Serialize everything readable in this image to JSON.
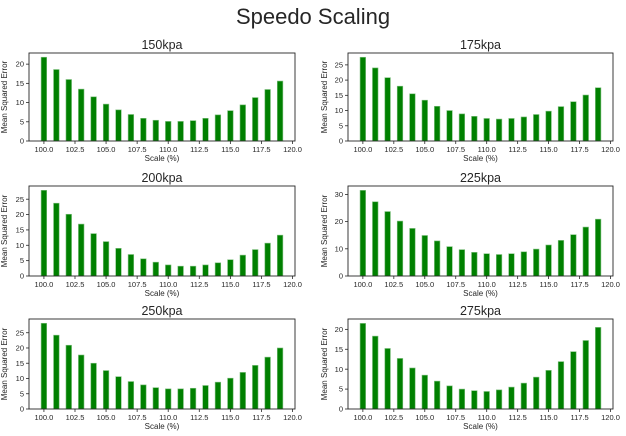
{
  "suptitle": "Speedo Scaling",
  "chart_data": [
    {
      "type": "bar",
      "title": "150kpa",
      "xlabel": "Scale (%)",
      "ylabel": "Mean Squared Error",
      "x": [
        100,
        101,
        102,
        103,
        104,
        105,
        106,
        107,
        108,
        109,
        110,
        111,
        112,
        113,
        114,
        115,
        116,
        117,
        118,
        119
      ],
      "values": [
        21.8,
        18.6,
        16.0,
        13.5,
        11.5,
        9.6,
        8.1,
        6.9,
        5.9,
        5.4,
        5.1,
        5.1,
        5.3,
        5.9,
        6.8,
        7.9,
        9.4,
        11.3,
        13.4,
        15.6
      ],
      "xticks": [
        "100.0",
        "102.5",
        "105.0",
        "107.5",
        "110.0",
        "112.5",
        "115.0",
        "117.5",
        "120.0"
      ],
      "yticks": [
        0,
        5,
        10,
        15,
        20
      ],
      "xlim": [
        98.8,
        120.2
      ],
      "ylim": [
        0,
        22.9
      ],
      "color": "#008000"
    },
    {
      "type": "bar",
      "title": "175kpa",
      "xlabel": "Scale (%)",
      "ylabel": "Mean Squared Error",
      "x": [
        100,
        101,
        102,
        103,
        104,
        105,
        106,
        107,
        108,
        109,
        110,
        111,
        112,
        113,
        114,
        115,
        116,
        117,
        118,
        119
      ],
      "values": [
        27.5,
        24.0,
        20.8,
        18.0,
        15.5,
        13.4,
        11.4,
        10.0,
        8.9,
        8.1,
        7.4,
        7.2,
        7.4,
        7.9,
        8.7,
        9.8,
        11.3,
        12.9,
        15.1,
        17.5
      ],
      "xticks": [
        "100.0",
        "102.5",
        "105.0",
        "107.5",
        "110.0",
        "112.5",
        "115.0",
        "117.5",
        "120.0"
      ],
      "yticks": [
        0,
        5,
        10,
        15,
        20,
        25
      ],
      "xlim": [
        98.8,
        120.2
      ],
      "ylim": [
        0,
        28.9
      ],
      "color": "#008000"
    },
    {
      "type": "bar",
      "title": "200kpa",
      "xlabel": "Scale (%)",
      "ylabel": "Mean Squared Error",
      "x": [
        100,
        101,
        102,
        103,
        104,
        105,
        106,
        107,
        108,
        109,
        110,
        111,
        112,
        113,
        114,
        115,
        116,
        117,
        118,
        119
      ],
      "values": [
        27.9,
        23.7,
        20.1,
        16.9,
        13.8,
        11.2,
        9.0,
        7.0,
        5.6,
        4.5,
        3.6,
        3.2,
        3.2,
        3.6,
        4.3,
        5.3,
        6.8,
        8.6,
        10.7,
        13.3
      ],
      "xticks": [
        "100.0",
        "102.5",
        "105.0",
        "107.5",
        "110.0",
        "112.5",
        "115.0",
        "117.5",
        "120.0"
      ],
      "yticks": [
        0,
        5,
        10,
        15,
        20,
        25
      ],
      "xlim": [
        98.8,
        120.2
      ],
      "ylim": [
        0,
        29.3
      ],
      "color": "#008000"
    },
    {
      "type": "bar",
      "title": "225kpa",
      "xlabel": "Scale (%)",
      "ylabel": "Mean Squared Error",
      "x": [
        100,
        101,
        102,
        103,
        104,
        105,
        106,
        107,
        108,
        109,
        110,
        111,
        112,
        113,
        114,
        115,
        116,
        117,
        118,
        119
      ],
      "values": [
        31.5,
        27.3,
        23.7,
        20.2,
        17.5,
        14.9,
        12.9,
        10.8,
        9.7,
        8.7,
        8.2,
        7.9,
        8.2,
        8.9,
        9.9,
        11.4,
        13.1,
        15.2,
        18.0,
        20.9
      ],
      "xticks": [
        "100.0",
        "102.5",
        "105.0",
        "107.5",
        "110.0",
        "112.5",
        "115.0",
        "117.5",
        "120.0"
      ],
      "yticks": [
        0,
        10,
        20,
        30
      ],
      "xlim": [
        98.8,
        120.2
      ],
      "ylim": [
        0,
        33.1
      ],
      "color": "#008000"
    },
    {
      "type": "bar",
      "title": "250kpa",
      "xlabel": "Scale (%)",
      "ylabel": "Mean Squared Error",
      "x": [
        100,
        101,
        102,
        103,
        104,
        105,
        106,
        107,
        108,
        109,
        110,
        111,
        112,
        113,
        114,
        115,
        116,
        117,
        118,
        119
      ],
      "values": [
        28.1,
        24.2,
        20.9,
        17.7,
        15.0,
        12.6,
        10.6,
        9.0,
        7.9,
        7.0,
        6.6,
        6.6,
        6.8,
        7.7,
        8.8,
        10.1,
        12.0,
        14.3,
        17.0,
        20.0
      ],
      "xticks": [
        "100.0",
        "102.5",
        "105.0",
        "107.5",
        "110.0",
        "112.5",
        "115.0",
        "117.5",
        "120.0"
      ],
      "yticks": [
        0,
        5,
        10,
        15,
        20,
        25
      ],
      "xlim": [
        98.8,
        120.2
      ],
      "ylim": [
        0,
        29.5
      ],
      "color": "#008000"
    },
    {
      "type": "bar",
      "title": "275kpa",
      "xlabel": "Scale (%)",
      "ylabel": "Mean Squared Error",
      "x": [
        100,
        101,
        102,
        103,
        104,
        105,
        106,
        107,
        108,
        109,
        110,
        111,
        112,
        113,
        114,
        115,
        116,
        117,
        118,
        119
      ],
      "values": [
        21.5,
        18.3,
        15.2,
        12.7,
        10.3,
        8.5,
        7.0,
        5.8,
        5.0,
        4.6,
        4.4,
        4.8,
        5.5,
        6.5,
        8.0,
        9.7,
        11.9,
        14.4,
        17.2,
        20.5
      ],
      "xticks": [
        "100.0",
        "102.5",
        "105.0",
        "107.5",
        "110.0",
        "112.5",
        "115.0",
        "117.5",
        "120.0"
      ],
      "yticks": [
        0,
        5,
        10,
        15,
        20
      ],
      "xlim": [
        98.8,
        120.2
      ],
      "ylim": [
        0,
        22.6
      ],
      "color": "#008000"
    }
  ]
}
